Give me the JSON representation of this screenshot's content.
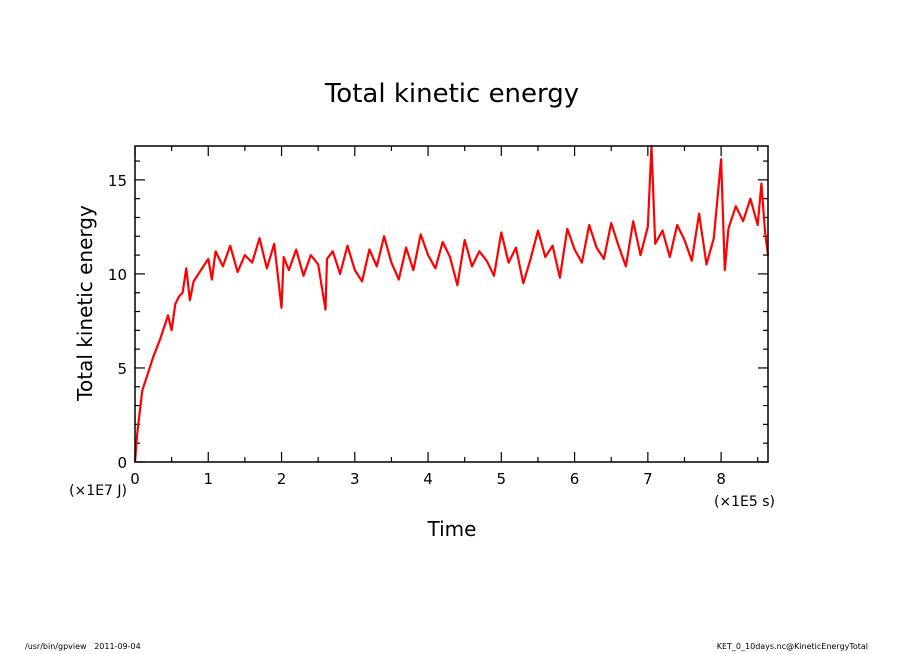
{
  "chart_data": {
    "type": "line",
    "title": "Total kinetic energy",
    "xlabel": "Time",
    "ylabel": "Total kinetic energy",
    "x_unit": "(×1E5 s)",
    "y_unit": "(×1E7 J)",
    "xlim": [
      0,
      8.64
    ],
    "ylim": [
      0,
      16.8
    ],
    "xticks": [
      "0",
      "1",
      "2",
      "3",
      "4",
      "5",
      "6",
      "7",
      "8"
    ],
    "yticks": [
      "0",
      "5",
      "10",
      "15"
    ],
    "grid": false,
    "color": "#ff0000",
    "series": [
      {
        "x": [
          0,
          0.03,
          0.06,
          0.1,
          0.15,
          0.2,
          0.25,
          0.3,
          0.35,
          0.4,
          0.45,
          0.5,
          0.55,
          0.6,
          0.65,
          0.7,
          0.75,
          0.8,
          0.9,
          1.0,
          1.05,
          1.1,
          1.2,
          1.3,
          1.4,
          1.5,
          1.6,
          1.7,
          1.8,
          1.9,
          2.0,
          2.03,
          2.1,
          2.2,
          2.3,
          2.4,
          2.5,
          2.6,
          2.62,
          2.7,
          2.8,
          2.9,
          3.0,
          3.1,
          3.2,
          3.3,
          3.4,
          3.5,
          3.6,
          3.7,
          3.8,
          3.9,
          4.0,
          4.1,
          4.2,
          4.3,
          4.4,
          4.5,
          4.6,
          4.7,
          4.8,
          4.9,
          5.0,
          5.1,
          5.2,
          5.3,
          5.4,
          5.5,
          5.6,
          5.7,
          5.8,
          5.9,
          6.0,
          6.1,
          6.2,
          6.3,
          6.4,
          6.5,
          6.6,
          6.7,
          6.8,
          6.9,
          7.0,
          7.05,
          7.1,
          7.2,
          7.3,
          7.4,
          7.5,
          7.6,
          7.7,
          7.8,
          7.9,
          8.0,
          8.05,
          8.1,
          8.2,
          8.3,
          8.4,
          8.5,
          8.55,
          8.6,
          8.64
        ],
        "y": [
          0,
          1.5,
          2.5,
          3.8,
          4.4,
          5.0,
          5.6,
          6.1,
          6.6,
          7.2,
          7.8,
          7.0,
          8.4,
          8.8,
          9.0,
          10.3,
          8.6,
          9.6,
          10.2,
          10.8,
          9.7,
          11.2,
          10.4,
          11.5,
          10.1,
          11.0,
          10.6,
          11.9,
          10.3,
          11.6,
          8.2,
          10.9,
          10.2,
          11.3,
          9.9,
          11.0,
          10.5,
          8.1,
          10.8,
          11.2,
          10.0,
          11.5,
          10.2,
          9.6,
          11.3,
          10.4,
          12.0,
          10.6,
          9.7,
          11.4,
          10.2,
          12.1,
          11.0,
          10.3,
          11.7,
          10.9,
          9.4,
          11.8,
          10.4,
          11.2,
          10.7,
          9.9,
          12.2,
          10.6,
          11.4,
          9.5,
          10.8,
          12.3,
          10.9,
          11.5,
          9.8,
          12.4,
          11.3,
          10.6,
          12.6,
          11.4,
          10.8,
          12.7,
          11.5,
          10.4,
          12.8,
          11.0,
          12.5,
          16.8,
          11.6,
          12.3,
          10.9,
          12.6,
          11.8,
          10.7,
          13.2,
          10.5,
          11.9,
          16.1,
          10.2,
          12.4,
          13.6,
          12.8,
          14.0,
          12.6,
          14.8,
          12.2,
          11.0
        ]
      }
    ]
  },
  "footer": {
    "left": "/usr/bin/gpview   2011-09-04",
    "right": "KET_0_10days.nc@KineticEnergyTotal"
  }
}
